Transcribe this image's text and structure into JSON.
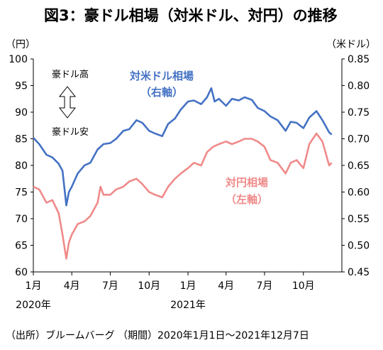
{
  "title": "図3：豪ドル相場（対米ドル、対円）の推移",
  "unit_left": "（円）",
  "unit_right": "（米ドル）",
  "source": "（出所）ブルームバーグ （期間）2020年1月1日～2021年12月7日",
  "annotations": {
    "aud_strong": "豪ドル高",
    "aud_weak": "豪ドル安"
  },
  "chart_data": {
    "type": "line",
    "x_ticks": [
      "1月",
      "4月",
      "7月",
      "10月",
      "1月",
      "4月",
      "7月",
      "10月"
    ],
    "x_years": [
      "2020年",
      "2021年"
    ],
    "y_left": {
      "label": "（円）",
      "range": [
        60,
        100
      ],
      "ticks": [
        60,
        65,
        70,
        75,
        80,
        85,
        90,
        95,
        100
      ]
    },
    "y_right": {
      "label": "（米ドル）",
      "range": [
        0.45,
        0.85
      ],
      "ticks": [
        "0.45",
        "0.50",
        "0.55",
        "0.60",
        "0.65",
        "0.70",
        "0.75",
        "0.80",
        "0.85"
      ]
    },
    "series": [
      {
        "name": "対米ドル相場（右軸）",
        "label_lines": [
          "対米ドル相場",
          "（右軸）"
        ],
        "axis": "right",
        "color": "#4472C4",
        "points": [
          [
            "2020-01-01",
            0.702
          ],
          [
            "2020-01-15",
            0.69
          ],
          [
            "2020-02-01",
            0.67
          ],
          [
            "2020-02-15",
            0.665
          ],
          [
            "2020-03-01",
            0.653
          ],
          [
            "2020-03-10",
            0.64
          ],
          [
            "2020-03-19",
            0.575
          ],
          [
            "2020-03-25",
            0.6
          ],
          [
            "2020-04-01",
            0.61
          ],
          [
            "2020-04-15",
            0.635
          ],
          [
            "2020-05-01",
            0.65
          ],
          [
            "2020-05-15",
            0.655
          ],
          [
            "2020-06-01",
            0.68
          ],
          [
            "2020-06-15",
            0.69
          ],
          [
            "2020-07-01",
            0.692
          ],
          [
            "2020-07-15",
            0.7
          ],
          [
            "2020-08-01",
            0.715
          ],
          [
            "2020-08-15",
            0.718
          ],
          [
            "2020-09-01",
            0.735
          ],
          [
            "2020-09-15",
            0.73
          ],
          [
            "2020-10-01",
            0.715
          ],
          [
            "2020-10-15",
            0.71
          ],
          [
            "2020-11-01",
            0.705
          ],
          [
            "2020-11-15",
            0.728
          ],
          [
            "2020-12-01",
            0.738
          ],
          [
            "2020-12-15",
            0.755
          ],
          [
            "2021-01-01",
            0.77
          ],
          [
            "2021-01-15",
            0.772
          ],
          [
            "2021-02-01",
            0.765
          ],
          [
            "2021-02-15",
            0.778
          ],
          [
            "2021-02-25",
            0.795
          ],
          [
            "2021-03-05",
            0.77
          ],
          [
            "2021-03-15",
            0.775
          ],
          [
            "2021-04-01",
            0.762
          ],
          [
            "2021-04-15",
            0.775
          ],
          [
            "2021-05-01",
            0.772
          ],
          [
            "2021-05-15",
            0.778
          ],
          [
            "2021-06-01",
            0.773
          ],
          [
            "2021-06-15",
            0.758
          ],
          [
            "2021-07-01",
            0.752
          ],
          [
            "2021-07-15",
            0.742
          ],
          [
            "2021-08-01",
            0.735
          ],
          [
            "2021-08-20",
            0.715
          ],
          [
            "2021-09-01",
            0.732
          ],
          [
            "2021-09-15",
            0.73
          ],
          [
            "2021-10-01",
            0.72
          ],
          [
            "2021-10-15",
            0.74
          ],
          [
            "2021-11-01",
            0.752
          ],
          [
            "2021-11-15",
            0.735
          ],
          [
            "2021-12-01",
            0.712
          ],
          [
            "2021-12-07",
            0.708
          ]
        ]
      },
      {
        "name": "対円相場（左軸）",
        "label_lines": [
          "対円相場",
          "（左軸）"
        ],
        "axis": "left",
        "color": "#F08A8A",
        "points": [
          [
            "2020-01-01",
            76.0
          ],
          [
            "2020-01-15",
            75.5
          ],
          [
            "2020-02-01",
            73.0
          ],
          [
            "2020-02-15",
            73.5
          ],
          [
            "2020-03-01",
            71.0
          ],
          [
            "2020-03-10",
            67.0
          ],
          [
            "2020-03-19",
            62.5
          ],
          [
            "2020-03-25",
            65.5
          ],
          [
            "2020-04-01",
            67.0
          ],
          [
            "2020-04-15",
            69.0
          ],
          [
            "2020-05-01",
            69.5
          ],
          [
            "2020-05-15",
            70.5
          ],
          [
            "2020-06-01",
            73.0
          ],
          [
            "2020-06-08",
            76.0
          ],
          [
            "2020-06-15",
            74.5
          ],
          [
            "2020-07-01",
            74.5
          ],
          [
            "2020-07-15",
            75.5
          ],
          [
            "2020-08-01",
            76.0
          ],
          [
            "2020-08-15",
            77.0
          ],
          [
            "2020-09-01",
            77.5
          ],
          [
            "2020-09-15",
            76.5
          ],
          [
            "2020-10-01",
            75.0
          ],
          [
            "2020-10-15",
            74.5
          ],
          [
            "2020-11-01",
            74.0
          ],
          [
            "2020-11-15",
            76.0
          ],
          [
            "2020-12-01",
            77.5
          ],
          [
            "2020-12-15",
            78.5
          ],
          [
            "2021-01-01",
            79.5
          ],
          [
            "2021-01-15",
            80.5
          ],
          [
            "2021-02-01",
            80.0
          ],
          [
            "2021-02-15",
            82.5
          ],
          [
            "2021-03-01",
            83.5
          ],
          [
            "2021-03-15",
            84.0
          ],
          [
            "2021-04-01",
            84.5
          ],
          [
            "2021-04-15",
            84.0
          ],
          [
            "2021-05-01",
            84.5
          ],
          [
            "2021-05-15",
            85.0
          ],
          [
            "2021-06-01",
            85.0
          ],
          [
            "2021-06-15",
            84.5
          ],
          [
            "2021-07-01",
            83.5
          ],
          [
            "2021-07-15",
            81.0
          ],
          [
            "2021-08-01",
            80.5
          ],
          [
            "2021-08-20",
            78.5
          ],
          [
            "2021-09-01",
            80.5
          ],
          [
            "2021-09-15",
            81.0
          ],
          [
            "2021-10-01",
            79.5
          ],
          [
            "2021-10-15",
            84.0
          ],
          [
            "2021-11-01",
            86.0
          ],
          [
            "2021-11-15",
            84.5
          ],
          [
            "2021-12-01",
            80.0
          ],
          [
            "2021-12-07",
            80.5
          ]
        ]
      }
    ]
  }
}
